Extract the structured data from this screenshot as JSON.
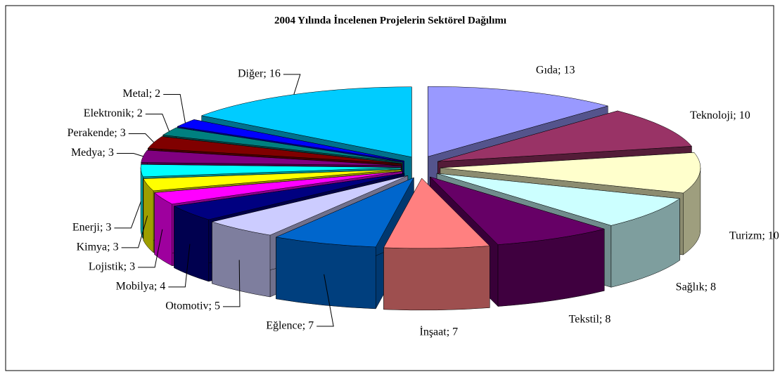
{
  "chart_data": {
    "type": "pie3d",
    "title": "2004 Yılında İncelenen Projelerin Sektörel Dağılımı",
    "values": [
      13,
      10,
      10,
      8,
      8,
      7,
      7,
      5,
      4,
      3,
      3,
      3,
      3,
      3,
      2,
      2,
      16
    ],
    "value_labels": [
      "Gıda; 13",
      "Teknoloji; 10",
      "Turizm; 10",
      "Sağlık; 8",
      "Tekstil; 8",
      "İnşaat; 7",
      "Eğlence; 7",
      "Otomotiv; 5",
      "Mobilya; 4",
      "Lojistik; 3",
      "Kimya; 3",
      "Enerji; 3",
      "Medya; 3",
      "Perakende; 3",
      "Elektronik; 2",
      "Metal; 2",
      "Diğer; 16"
    ],
    "colors": [
      "#9999ff",
      "#993366",
      "#ffffcc",
      "#ccffff",
      "#660066",
      "#ff8080",
      "#0066cc",
      "#ccccff",
      "#000080",
      "#ff00ff",
      "#ffff00",
      "#00ffff",
      "#800080",
      "#800000",
      "#008080",
      "#0000ff",
      "#00ccff"
    ]
  }
}
